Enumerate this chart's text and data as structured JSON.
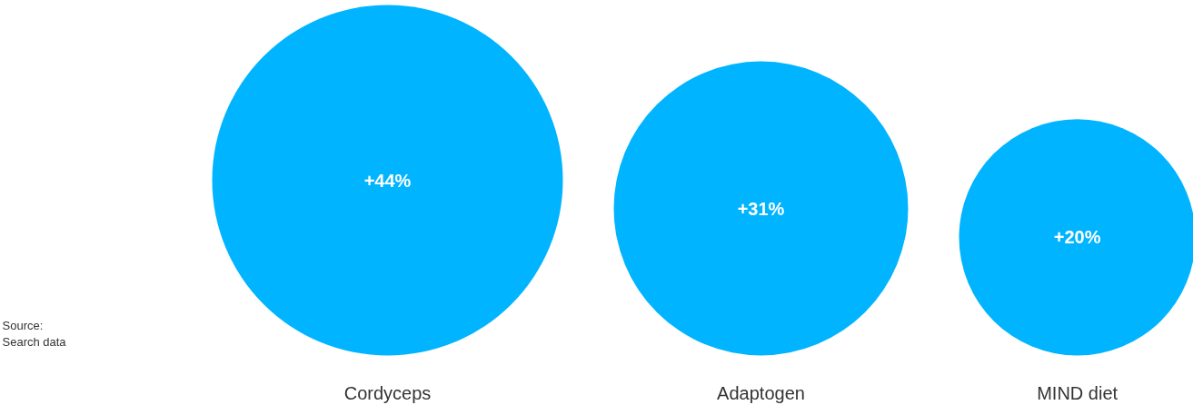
{
  "chart_data": {
    "type": "other",
    "categories": [
      "Cordyceps",
      "Adaptogen",
      "MIND diet"
    ],
    "values": [
      44,
      31,
      20
    ],
    "value_labels": [
      "+44%",
      "+31%",
      "+20%"
    ],
    "color": "#00b4ff",
    "annotations": [
      "Source:\nSearch data"
    ]
  }
}
